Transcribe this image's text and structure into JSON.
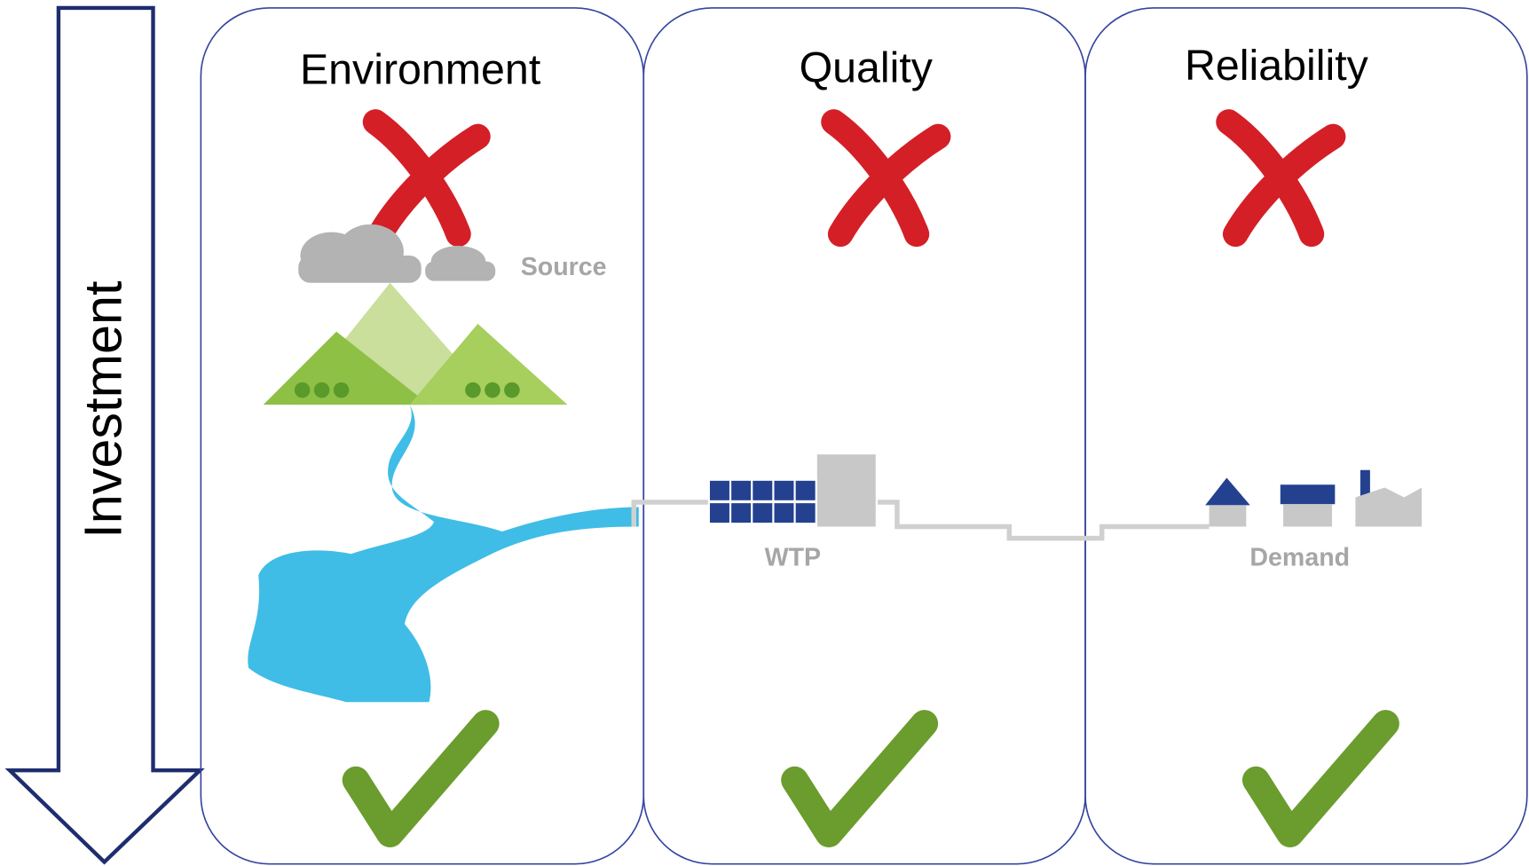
{
  "arrow": {
    "label": "Investment"
  },
  "panels": [
    {
      "title": "Environment"
    },
    {
      "title": "Quality"
    },
    {
      "title": "Reliability"
    }
  ],
  "labels": {
    "source": "Source",
    "wtp": "WTP",
    "demand": "Demand"
  }
}
